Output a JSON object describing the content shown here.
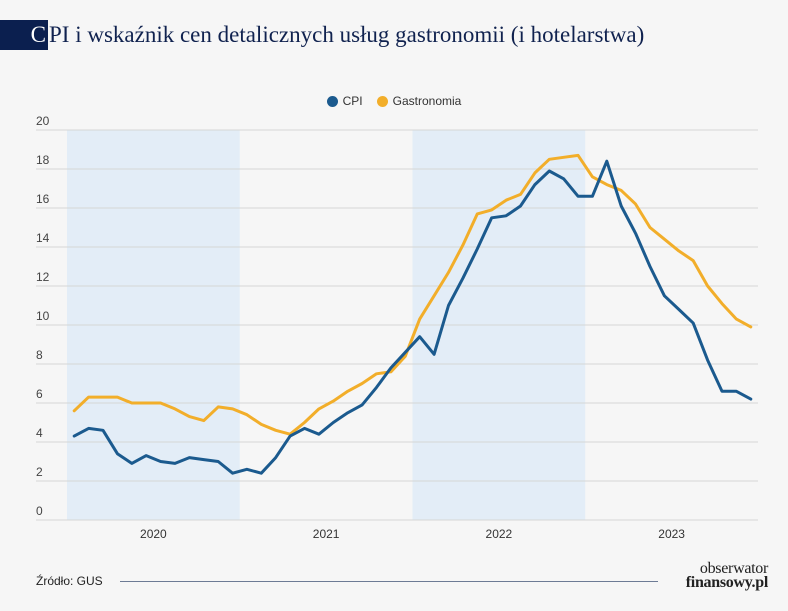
{
  "title": {
    "first_letter": "C",
    "rest": "PI i wskaźnik cen detalicznych usług gastronomii (i hotelarstwa)"
  },
  "colors": {
    "title_block": "#0b1f4f",
    "cpi": "#1b5a8e",
    "gastronomia": "#f2ae2a",
    "band": "#e3edf7",
    "grid": "#d6d6d6"
  },
  "legend": [
    {
      "label": "CPI",
      "color": "#1b5a8e"
    },
    {
      "label": "Gastronomia",
      "color": "#f2ae2a"
    }
  ],
  "source": "Źródło: GUS",
  "brand": {
    "line1": "obserwator",
    "line2": "finansowy.pl"
  },
  "chart_data": {
    "type": "line",
    "ylim": [
      0,
      20
    ],
    "yticks": [
      0,
      2,
      4,
      6,
      8,
      10,
      12,
      14,
      16,
      18,
      20
    ],
    "years": [
      "2020",
      "2021",
      "2022",
      "2023"
    ],
    "shaded_years": [
      "2020",
      "2022"
    ],
    "months_per_year": 12,
    "series": [
      {
        "name": "CPI",
        "color": "#1b5a8e",
        "values": [
          4.3,
          4.7,
          4.6,
          3.4,
          2.9,
          3.3,
          3.0,
          2.9,
          3.2,
          3.1,
          3.0,
          2.4,
          2.6,
          2.4,
          3.2,
          4.3,
          4.7,
          4.4,
          5.0,
          5.5,
          5.9,
          6.8,
          7.8,
          8.6,
          9.4,
          8.5,
          11.0,
          12.4,
          13.9,
          15.5,
          15.6,
          16.1,
          17.2,
          17.9,
          17.5,
          16.6,
          16.6,
          18.4,
          16.1,
          14.7,
          13.0,
          11.5,
          10.8,
          10.1,
          8.2,
          6.6,
          6.6,
          6.2
        ],
        "label_source": "legend"
      },
      {
        "name": "Gastronomia",
        "color": "#f2ae2a",
        "values": [
          5.6,
          6.3,
          6.3,
          6.3,
          6.0,
          6.0,
          6.0,
          5.7,
          5.3,
          5.1,
          5.8,
          5.7,
          5.4,
          4.9,
          4.6,
          4.4,
          5.0,
          5.7,
          6.1,
          6.6,
          7.0,
          7.5,
          7.6,
          8.4,
          10.3,
          11.5,
          12.7,
          14.1,
          15.7,
          15.9,
          16.4,
          16.7,
          17.8,
          18.5,
          18.6,
          18.7,
          17.6,
          17.2,
          16.9,
          16.2,
          15.0,
          14.4,
          13.8,
          13.3,
          12.0,
          11.1,
          10.3,
          9.9
        ],
        "label_source": "legend"
      }
    ],
    "grid": true,
    "legend_position": "top-center"
  }
}
